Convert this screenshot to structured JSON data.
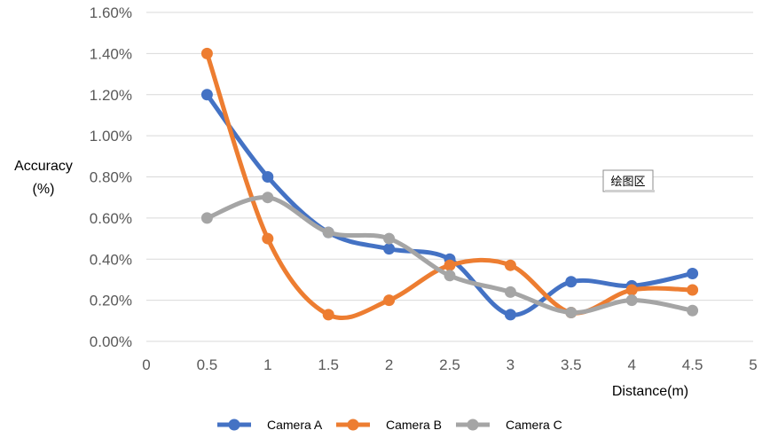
{
  "chart_data": {
    "type": "line",
    "smooth": true,
    "x": [
      0.5,
      1,
      1.5,
      2,
      2.5,
      3,
      3.5,
      4,
      4.5
    ],
    "series": [
      {
        "name": "Camera A",
        "color": "#4472C4",
        "values": [
          1.2,
          0.8,
          0.53,
          0.45,
          0.4,
          0.13,
          0.29,
          0.27,
          0.33
        ]
      },
      {
        "name": "Camera B",
        "color": "#ED7D31",
        "values": [
          1.4,
          0.5,
          0.13,
          0.2,
          0.37,
          0.37,
          0.14,
          0.25,
          0.25
        ]
      },
      {
        "name": "Camera C",
        "color": "#A5A5A5",
        "values": [
          0.6,
          0.7,
          0.53,
          0.5,
          0.32,
          0.24,
          0.14,
          0.2,
          0.15
        ]
      }
    ],
    "xlim": [
      0,
      5
    ],
    "ylim": [
      0,
      1.6
    ],
    "xticks": [
      "0",
      "0.5",
      "1",
      "1.5",
      "2",
      "2.5",
      "3",
      "3.5",
      "4",
      "4.5",
      "5"
    ],
    "yticks": [
      "0.00%",
      "0.20%",
      "0.40%",
      "0.60%",
      "0.80%",
      "1.00%",
      "1.20%",
      "1.40%",
      "1.60%"
    ],
    "xlabel": "Distance(m)",
    "ylabel_line1": "Accuracy",
    "ylabel_line2": "(%)",
    "grid": "horizontal",
    "legend_position": "bottom",
    "tooltip": "绘图区"
  }
}
